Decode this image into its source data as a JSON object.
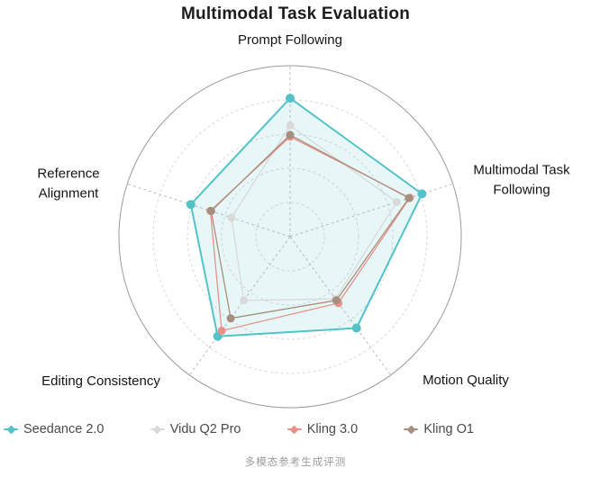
{
  "chart_data": {
    "type": "radar",
    "title": "Multimodal Task Evaluation",
    "axes": [
      "Prompt Following",
      "Multimodal Task Following",
      "Motion Quality",
      "Editing Consistency",
      "Reference Alignment"
    ],
    "max": 1.0,
    "rings": 5,
    "grid": "circular, inner rings dashed, outer ring solid",
    "legend_position": "bottom",
    "series": [
      {
        "name": "Seedance 2.0",
        "color": "#53C3C8",
        "fill": "rgba(83,195,200,0.14)",
        "values": [
          0.81,
          0.81,
          0.66,
          0.72,
          0.61
        ]
      },
      {
        "name": "Vidu Q2 Pro",
        "color": "#D9D9D9",
        "fill": "none",
        "values": [
          0.65,
          0.655,
          0.45,
          0.46,
          0.36
        ]
      },
      {
        "name": "Kling 3.0",
        "color": "#E8918A",
        "fill": "none",
        "values": [
          0.585,
          0.735,
          0.48,
          0.68,
          0.49
        ]
      },
      {
        "name": "Kling O1",
        "color": "#A78F7F",
        "fill": "none",
        "values": [
          0.595,
          0.73,
          0.46,
          0.59,
          0.485
        ]
      }
    ],
    "caption": "多模态参考生成评测"
  }
}
